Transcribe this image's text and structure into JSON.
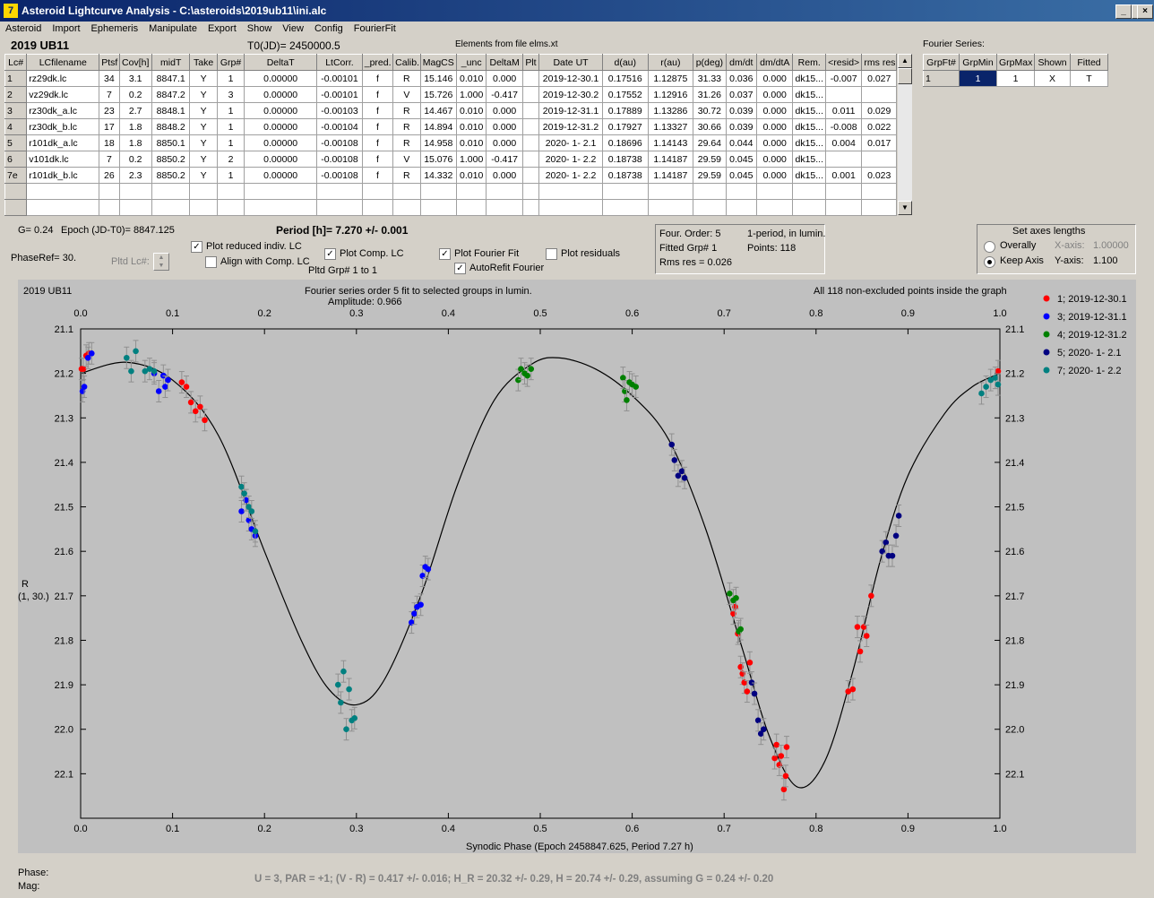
{
  "window": {
    "icon_text": "7",
    "title": "Asteroid Lightcurve Analysis - C:\\asteroids\\2019ub11\\ini.alc",
    "min": "_",
    "max": "□",
    "close": "×"
  },
  "menu": [
    "Asteroid",
    "Import",
    "Ephemeris",
    "Manipulate",
    "Export",
    "Show",
    "View",
    "Config",
    "FourierFit"
  ],
  "header": {
    "asteroid": "2019 UB11",
    "t0": "T0(JD)= 2450000.5",
    "elements": "Elements from file elms.xt",
    "fourier_label": "Fourier Series:"
  },
  "table": {
    "columns": [
      "Lc#",
      "LCfilename",
      "Ptsf",
      "Cov[h]",
      "midT",
      "Take",
      "Grp#",
      "DeltaT",
      "LtCorr.",
      "_pred.",
      "Calib.",
      "MagCS",
      "_unc",
      "DeltaM",
      "Plt",
      "Date UT",
      "d(au)",
      "r(au)",
      "p(deg)",
      "dm/dt",
      "dm/dtA",
      "Rem.",
      "<resid>",
      "rms res"
    ],
    "rows": [
      [
        "1",
        "rz29dk.lc",
        "34",
        "3.1",
        "8847.1",
        "Y",
        "1",
        "0.00000",
        "-0.00101",
        "f",
        "R",
        "15.146",
        "0.010",
        "0.000",
        "",
        "2019-12-30.1",
        "0.17516",
        "1.12875",
        "31.33",
        "0.036",
        "0.000",
        "dk15...",
        "-0.007",
        "0.027"
      ],
      [
        "2",
        "vz29dk.lc",
        "7",
        "0.2",
        "8847.2",
        "Y",
        "3",
        "0.00000",
        "-0.00101",
        "f",
        "V",
        "15.726",
        "1.000",
        "-0.417",
        "",
        "2019-12-30.2",
        "0.17552",
        "1.12916",
        "31.26",
        "0.037",
        "0.000",
        "dk15...",
        "",
        ""
      ],
      [
        "3",
        "rz30dk_a.lc",
        "23",
        "2.7",
        "8848.1",
        "Y",
        "1",
        "0.00000",
        "-0.00103",
        "f",
        "R",
        "14.467",
        "0.010",
        "0.000",
        "",
        "2019-12-31.1",
        "0.17889",
        "1.13286",
        "30.72",
        "0.039",
        "0.000",
        "dk15...",
        "0.011",
        "0.029"
      ],
      [
        "4",
        "rz30dk_b.lc",
        "17",
        "1.8",
        "8848.2",
        "Y",
        "1",
        "0.00000",
        "-0.00104",
        "f",
        "R",
        "14.894",
        "0.010",
        "0.000",
        "",
        "2019-12-31.2",
        "0.17927",
        "1.13327",
        "30.66",
        "0.039",
        "0.000",
        "dk15...",
        "-0.008",
        "0.022"
      ],
      [
        "5",
        "r101dk_a.lc",
        "18",
        "1.8",
        "8850.1",
        "Y",
        "1",
        "0.00000",
        "-0.00108",
        "f",
        "R",
        "14.958",
        "0.010",
        "0.000",
        "",
        "2020- 1- 2.1",
        "0.18696",
        "1.14143",
        "29.64",
        "0.044",
        "0.000",
        "dk15...",
        "0.004",
        "0.017"
      ],
      [
        "6",
        "v101dk.lc",
        "7",
        "0.2",
        "8850.2",
        "Y",
        "2",
        "0.00000",
        "-0.00108",
        "f",
        "V",
        "15.076",
        "1.000",
        "-0.417",
        "",
        "2020- 1- 2.2",
        "0.18738",
        "1.14187",
        "29.59",
        "0.045",
        "0.000",
        "dk15...",
        "",
        ""
      ],
      [
        "7e",
        "r101dk_b.lc",
        "26",
        "2.3",
        "8850.2",
        "Y",
        "1",
        "0.00000",
        "-0.00108",
        "f",
        "R",
        "14.332",
        "0.010",
        "0.000",
        "",
        "2020- 1- 2.2",
        "0.18738",
        "1.14187",
        "29.59",
        "0.045",
        "0.000",
        "dk15...",
        "0.001",
        "0.023"
      ]
    ]
  },
  "fourier_table": {
    "columns": [
      "GrpFt#",
      "GrpMin",
      "GrpMax",
      "Shown",
      "Fitted"
    ],
    "row": [
      "1",
      "1",
      "1",
      "X",
      "T"
    ]
  },
  "controls": {
    "g": "G= 0.24",
    "epoch": "Epoch (JD-T0)= 8847.125",
    "period": "Period [h]= 7.270 +/- 0.001",
    "phaseref": "PhaseRef= 30.",
    "pltd_lc": "Pltd Lc#:",
    "plot_reduced": "Plot reduced indiv. LC",
    "align": "Align with Comp. LC",
    "plot_comp": "Plot Comp. LC",
    "pltd_grp": "Pltd Grp#  1   to   1",
    "plot_fourier": "Plot Fourier Fit",
    "autorefit": "AutoRefit Fourier",
    "plot_residuals": "Plot residuals"
  },
  "info": {
    "order": "Four. Order:  5",
    "one_period": "1-period, in lumin.",
    "fitted": "Fitted Grp# 1",
    "points": "Points: 118",
    "rms": "Rms res     = 0.026"
  },
  "axes_box": {
    "title": "Set axes lengths",
    "overally": "Overally",
    "keep_axis": "Keep Axis",
    "xaxis_label": "X-axis:",
    "xaxis_value": "1.00000",
    "yaxis_label": "Y-axis:",
    "yaxis_value": "1.100"
  },
  "plot_text": {
    "name": "2019 UB11",
    "fit_title": "Fourier series order 5 fit to selected groups in lumin.",
    "amplitude": "Amplitude: 0.966",
    "points_note": "All 118 non-excluded points inside the graph",
    "ylabel_a": "R",
    "ylabel_b": "(1, 30.)",
    "xlabel": "Synodic Phase (Epoch 2458847.625, Period 7.27 h)"
  },
  "footer": {
    "phase": "Phase:",
    "mag": "Mag:",
    "summary": "U = 3, PAR = +1; (V - R) = 0.417 +/- 0.016; H_R = 20.32 +/- 0.29, H = 20.74 +/- 0.29, assuming G = 0.24 +/- 0.20"
  },
  "chart_data": {
    "type": "scatter",
    "x_ticks": [
      "0.0",
      "0.1",
      "0.2",
      "0.3",
      "0.4",
      "0.5",
      "0.6",
      "0.7",
      "0.8",
      "0.9",
      "1.0"
    ],
    "y_ticks": [
      "21.1",
      "21.2",
      "21.3",
      "21.4",
      "21.5",
      "21.6",
      "21.7",
      "21.8",
      "21.9",
      "22.0",
      "22.1"
    ],
    "xlim": [
      0,
      1
    ],
    "ylim": [
      22.2,
      21.1
    ],
    "y_inverted": true,
    "grid": false,
    "legend_position": "top-right",
    "fit_curve": {
      "color": "#000000",
      "points": [
        [
          0,
          21.2
        ],
        [
          0.05,
          21.175
        ],
        [
          0.1,
          21.215
        ],
        [
          0.15,
          21.34
        ],
        [
          0.2,
          21.6
        ],
        [
          0.24,
          21.8
        ],
        [
          0.27,
          21.91
        ],
        [
          0.3,
          21.945
        ],
        [
          0.33,
          21.89
        ],
        [
          0.37,
          21.7
        ],
        [
          0.41,
          21.45
        ],
        [
          0.45,
          21.26
        ],
        [
          0.49,
          21.18
        ],
        [
          0.52,
          21.165
        ],
        [
          0.56,
          21.19
        ],
        [
          0.6,
          21.25
        ],
        [
          0.64,
          21.35
        ],
        [
          0.68,
          21.55
        ],
        [
          0.72,
          21.82
        ],
        [
          0.75,
          22.02
        ],
        [
          0.78,
          22.13
        ],
        [
          0.81,
          22.07
        ],
        [
          0.84,
          21.87
        ],
        [
          0.87,
          21.62
        ],
        [
          0.9,
          21.43
        ],
        [
          0.94,
          21.29
        ],
        [
          0.97,
          21.23
        ],
        [
          1.0,
          21.2
        ]
      ]
    },
    "series": [
      {
        "name": "1; 2019-12-30.1",
        "color": "#ff0000",
        "points": [
          [
            0.001,
            21.19
          ],
          [
            0.003,
            21.19
          ],
          [
            0.006,
            21.16
          ],
          [
            0.009,
            21.155
          ],
          [
            0.998,
            21.195
          ],
          [
            0.11,
            21.22
          ],
          [
            0.115,
            21.23
          ],
          [
            0.12,
            21.265
          ],
          [
            0.125,
            21.285
          ],
          [
            0.13,
            21.275
          ],
          [
            0.135,
            21.305
          ],
          [
            0.71,
            21.74
          ],
          [
            0.712,
            21.725
          ],
          [
            0.715,
            21.785
          ],
          [
            0.718,
            21.86
          ],
          [
            0.72,
            21.875
          ],
          [
            0.722,
            21.895
          ],
          [
            0.725,
            21.915
          ],
          [
            0.728,
            21.85
          ],
          [
            0.755,
            22.065
          ],
          [
            0.757,
            22.035
          ],
          [
            0.76,
            22.08
          ],
          [
            0.762,
            22.06
          ],
          [
            0.765,
            22.135
          ],
          [
            0.767,
            22.105
          ],
          [
            0.768,
            22.04
          ],
          [
            0.835,
            21.915
          ],
          [
            0.84,
            21.91
          ],
          [
            0.845,
            21.77
          ],
          [
            0.848,
            21.825
          ],
          [
            0.852,
            21.77
          ],
          [
            0.855,
            21.79
          ],
          [
            0.86,
            21.7
          ]
        ]
      },
      {
        "name": "3; 2019-12-31.1",
        "color": "#0000ff",
        "points": [
          [
            0.002,
            21.24
          ],
          [
            0.004,
            21.23
          ],
          [
            0.008,
            21.165
          ],
          [
            0.012,
            21.155
          ],
          [
            0.08,
            21.2
          ],
          [
            0.085,
            21.24
          ],
          [
            0.09,
            21.205
          ],
          [
            0.092,
            21.23
          ],
          [
            0.095,
            21.215
          ],
          [
            0.175,
            21.51
          ],
          [
            0.18,
            21.485
          ],
          [
            0.183,
            21.53
          ],
          [
            0.186,
            21.55
          ],
          [
            0.19,
            21.565
          ],
          [
            0.36,
            21.76
          ],
          [
            0.363,
            21.74
          ],
          [
            0.366,
            21.725
          ],
          [
            0.37,
            21.72
          ],
          [
            0.372,
            21.655
          ],
          [
            0.375,
            21.635
          ],
          [
            0.378,
            21.64
          ]
        ]
      },
      {
        "name": "4; 2019-12-31.2",
        "color": "#008000",
        "points": [
          [
            0.476,
            21.215
          ],
          [
            0.479,
            21.19
          ],
          [
            0.483,
            21.2
          ],
          [
            0.486,
            21.205
          ],
          [
            0.49,
            21.19
          ],
          [
            0.59,
            21.21
          ],
          [
            0.592,
            21.24
          ],
          [
            0.594,
            21.26
          ],
          [
            0.597,
            21.22
          ],
          [
            0.6,
            21.225
          ],
          [
            0.604,
            21.23
          ],
          [
            0.706,
            21.695
          ],
          [
            0.71,
            21.71
          ],
          [
            0.713,
            21.705
          ],
          [
            0.716,
            21.78
          ],
          [
            0.718,
            21.775
          ]
        ]
      },
      {
        "name": "5; 2020- 1- 2.1",
        "color": "#000080",
        "points": [
          [
            0.643,
            21.36
          ],
          [
            0.646,
            21.395
          ],
          [
            0.65,
            21.43
          ],
          [
            0.654,
            21.42
          ],
          [
            0.657,
            21.435
          ],
          [
            0.73,
            21.895
          ],
          [
            0.733,
            21.92
          ],
          [
            0.737,
            21.98
          ],
          [
            0.74,
            22.01
          ],
          [
            0.743,
            22.0
          ],
          [
            0.872,
            21.6
          ],
          [
            0.876,
            21.58
          ],
          [
            0.879,
            21.61
          ],
          [
            0.883,
            21.61
          ],
          [
            0.887,
            21.565
          ],
          [
            0.89,
            21.52
          ]
        ]
      },
      {
        "name": "7; 2020- 1- 2.2",
        "color": "#008080",
        "points": [
          [
            0.05,
            21.165
          ],
          [
            0.055,
            21.195
          ],
          [
            0.06,
            21.15
          ],
          [
            0.07,
            21.195
          ],
          [
            0.075,
            21.19
          ],
          [
            0.08,
            21.195
          ],
          [
            0.175,
            21.455
          ],
          [
            0.178,
            21.47
          ],
          [
            0.183,
            21.5
          ],
          [
            0.186,
            21.51
          ],
          [
            0.19,
            21.555
          ],
          [
            0.28,
            21.9
          ],
          [
            0.283,
            21.94
          ],
          [
            0.286,
            21.87
          ],
          [
            0.289,
            22.0
          ],
          [
            0.292,
            21.91
          ],
          [
            0.295,
            21.98
          ],
          [
            0.298,
            21.975
          ],
          [
            0.98,
            21.245
          ],
          [
            0.985,
            21.23
          ],
          [
            0.99,
            21.215
          ],
          [
            0.995,
            21.21
          ],
          [
            0.998,
            21.225
          ]
        ]
      }
    ]
  }
}
